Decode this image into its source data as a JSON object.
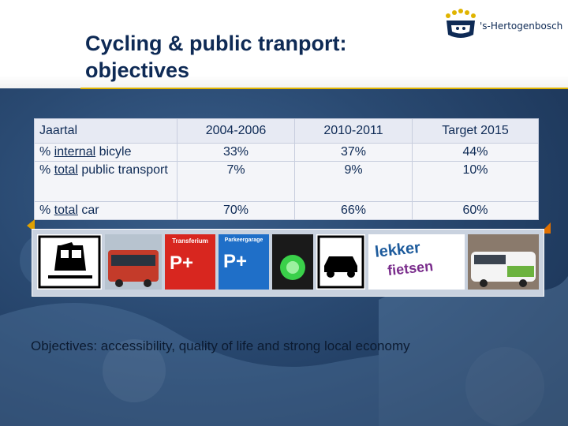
{
  "header": {
    "title_line1": "Cycling & public tranport:",
    "title_line2": "objectives",
    "logo_text": "'s-Hertogenbosch"
  },
  "table": {
    "columns": [
      "Jaartal",
      "2004-2006",
      "2010-2011",
      "Target 2015"
    ],
    "rows": [
      {
        "pre": "% ",
        "underlined": "internal",
        "post": " bicyle",
        "values": [
          "33%",
          "37%",
          "44%"
        ]
      },
      {
        "pre": "% ",
        "underlined": "total",
        "post": " public transport",
        "values": [
          "7%",
          "9%",
          "10%"
        ]
      },
      {
        "pre": "% ",
        "underlined": "total",
        "post": " car",
        "values": [
          "70%",
          "66%",
          "60%"
        ]
      }
    ]
  },
  "photos": {
    "sign_transferium": "Transferium",
    "sign_parkeergarage": "Parkeergarage",
    "p_plus": "P+",
    "lekker": "lekker",
    "fietsen": "fietsen"
  },
  "caption": "Objectives: accessibility, quality of life and strong local economy",
  "colors": {
    "title": "#0e2a55",
    "accent_rule": "#e0b400",
    "background": "#2a4a72"
  }
}
